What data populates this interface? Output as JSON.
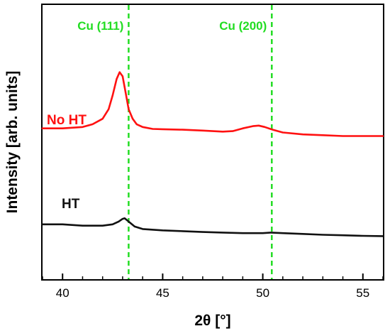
{
  "chart_data": {
    "type": "line",
    "title": "",
    "xlabel": "2θ [°]",
    "ylabel": "Intensity [arb. units]",
    "xlim": [
      39,
      56
    ],
    "ylim": [
      0,
      1
    ],
    "x_ticks": [
      40,
      45,
      50,
      55
    ],
    "y_tick_labels": false,
    "grid": false,
    "legend": "none",
    "reference_lines": [
      {
        "label": "Cu (111)",
        "x": 43.3,
        "color": "#22dd22",
        "style": "dashed"
      },
      {
        "label": "Cu (200)",
        "x": 50.45,
        "color": "#22dd22",
        "style": "dashed"
      }
    ],
    "series": [
      {
        "name": "No HT",
        "color": "#ff1111",
        "x": [
          39.0,
          40.0,
          41.0,
          41.5,
          42.0,
          42.3,
          42.5,
          42.7,
          42.85,
          43.0,
          43.15,
          43.3,
          43.5,
          43.7,
          44.0,
          44.5,
          45.0,
          46.0,
          47.0,
          48.0,
          48.5,
          49.0,
          49.5,
          49.8,
          50.1,
          50.5,
          51.0,
          52.0,
          53.0,
          54.0,
          55.0,
          56.0
        ],
        "y": [
          0.55,
          0.55,
          0.555,
          0.565,
          0.585,
          0.62,
          0.67,
          0.73,
          0.755,
          0.74,
          0.68,
          0.62,
          0.585,
          0.565,
          0.555,
          0.548,
          0.547,
          0.545,
          0.542,
          0.538,
          0.54,
          0.55,
          0.558,
          0.56,
          0.555,
          0.545,
          0.535,
          0.528,
          0.525,
          0.522,
          0.522,
          0.522
        ]
      },
      {
        "name": "HT",
        "color": "#111111",
        "x": [
          39.0,
          40.0,
          41.0,
          42.0,
          42.5,
          42.8,
          43.0,
          43.1,
          43.3,
          43.6,
          44.0,
          45.0,
          46.0,
          47.0,
          48.0,
          49.0,
          50.0,
          50.4,
          51.0,
          52.0,
          53.0,
          54.0,
          55.0,
          56.0
        ],
        "y": [
          0.2,
          0.2,
          0.195,
          0.195,
          0.2,
          0.21,
          0.22,
          0.222,
          0.21,
          0.192,
          0.183,
          0.178,
          0.175,
          0.172,
          0.17,
          0.168,
          0.168,
          0.17,
          0.168,
          0.165,
          0.162,
          0.16,
          0.158,
          0.157
        ]
      }
    ]
  }
}
